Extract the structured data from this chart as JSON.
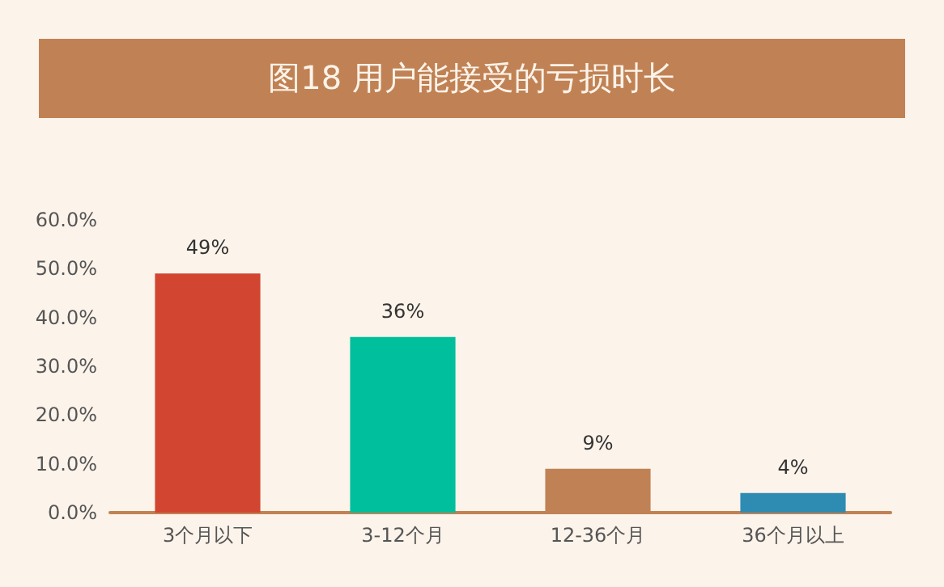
{
  "chart_data": {
    "type": "bar",
    "title": "图18 用户能接受的亏损时长",
    "categories": [
      "3个月以下",
      "3-12个月",
      "12-36个月",
      "36个月以上"
    ],
    "values": [
      49,
      36,
      9,
      4
    ],
    "colors": [
      "#d24530",
      "#00bf9c",
      "#c08254",
      "#2e8cb2"
    ],
    "value_labels": [
      "49%",
      "36%",
      "9%",
      "4%"
    ],
    "ylim": [
      0,
      60
    ],
    "yticks": [
      {
        "value": 0,
        "label": "0.0%"
      },
      {
        "value": 10,
        "label": "10.0%"
      },
      {
        "value": 20,
        "label": "20.0%"
      },
      {
        "value": 30,
        "label": "30.0%"
      },
      {
        "value": 40,
        "label": "40.0%"
      },
      {
        "value": 50,
        "label": "50.0%"
      },
      {
        "value": 60,
        "label": "60.0%"
      }
    ],
    "grid": false
  }
}
